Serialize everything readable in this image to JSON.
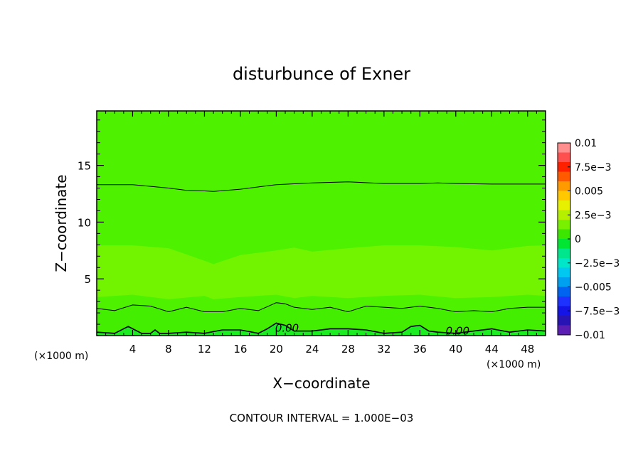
{
  "chart_data": {
    "type": "heatmap",
    "title": "disturbunce of Exner",
    "xlabel": "X−coordinate",
    "ylabel": "Z−coordinate",
    "x_unit_left": "(×1000 m)",
    "x_unit_right": "(×1000 m)",
    "xlim": [
      0,
      50
    ],
    "ylim": [
      0,
      19.8
    ],
    "x_ticks": [
      4,
      8,
      12,
      16,
      20,
      24,
      28,
      32,
      36,
      40,
      44,
      48
    ],
    "x_tick_labels": [
      "4",
      "8",
      "12",
      "16",
      "20",
      "24",
      "28",
      "32",
      "36",
      "40",
      "44",
      "48"
    ],
    "y_ticks": [
      5,
      10,
      15
    ],
    "y_tick_labels": [
      "5",
      "10",
      "15"
    ],
    "colorbar": {
      "range": [
        -0.01,
        0.01
      ],
      "labels": [
        "0.01",
        "7.5e−3",
        "0.005",
        "2.5e−3",
        "0",
        "−2.5e−3",
        "−0.005",
        "−7.5e−3",
        "−0.01"
      ],
      "label_values": [
        0.01,
        0.0075,
        0.005,
        0.0025,
        0,
        -0.0025,
        -0.005,
        -0.0075,
        -0.01
      ],
      "colors_top_to_bottom": [
        "#ff8e8e",
        "#ff5050",
        "#ff2000",
        "#ff5a00",
        "#ff9a00",
        "#ffc800",
        "#e6f000",
        "#b4f000",
        "#78f000",
        "#3ce600",
        "#00e632",
        "#00e68c",
        "#00e6c8",
        "#00c8f0",
        "#00a0f0",
        "#0064f0",
        "#1e32ff",
        "#1414e6",
        "#2814b4",
        "#5a1eb4"
      ]
    },
    "fill_colors": {
      "upper_band": "#4ef200",
      "mid_band": "#72f400",
      "low_band": "#44ee00",
      "surface_band": "#1cec22"
    },
    "contour_interval_value": 0.001,
    "contours": [
      {
        "name": "upper",
        "x": [
          0,
          4,
          8,
          10,
          12,
          13,
          16,
          20,
          24,
          28,
          32,
          36,
          38,
          40,
          44,
          48,
          50
        ],
        "z": [
          13.3,
          13.3,
          13.0,
          12.8,
          12.75,
          12.7,
          12.9,
          13.3,
          13.45,
          13.55,
          13.4,
          13.4,
          13.45,
          13.4,
          13.35,
          13.35,
          13.35
        ]
      },
      {
        "name": "lower",
        "x": [
          0,
          2,
          4,
          6,
          8,
          10,
          12,
          14,
          16,
          18,
          20,
          21,
          22,
          24,
          26,
          28,
          30,
          32,
          34,
          36,
          38,
          40,
          42,
          44,
          46,
          48,
          50
        ],
        "z": [
          2.4,
          2.2,
          2.7,
          2.6,
          2.1,
          2.5,
          2.1,
          2.1,
          2.4,
          2.2,
          2.9,
          2.8,
          2.5,
          2.3,
          2.5,
          2.1,
          2.6,
          2.5,
          2.4,
          2.6,
          2.4,
          2.1,
          2.2,
          2.1,
          2.4,
          2.5,
          2.5
        ]
      },
      {
        "name": "zero",
        "x": [
          0,
          2,
          3.5,
          4,
          5,
          6,
          6.5,
          7,
          8,
          10,
          12,
          14,
          16,
          18,
          19,
          20,
          21,
          22,
          24,
          26,
          28,
          30,
          32,
          34,
          35,
          36,
          37,
          38,
          40,
          42,
          44,
          46,
          48,
          50
        ],
        "z": [
          0.3,
          0.2,
          0.8,
          0.6,
          0.2,
          0.2,
          0.5,
          0.2,
          0.2,
          0.3,
          0.2,
          0.5,
          0.5,
          0.2,
          0.6,
          1.1,
          0.9,
          0.4,
          0.4,
          0.6,
          0.6,
          0.5,
          0.2,
          0.3,
          0.8,
          0.9,
          0.4,
          0.3,
          0.2,
          0.4,
          0.6,
          0.3,
          0.5,
          0.4
        ]
      }
    ],
    "contour_labels": [
      {
        "text": "0.00",
        "x": 21.2,
        "z": 0.35
      },
      {
        "text": "0.00",
        "x": 40.2,
        "z": 0.1
      }
    ]
  },
  "footer": {
    "contour_interval": "CONTOUR INTERVAL = 1.000E−03"
  }
}
